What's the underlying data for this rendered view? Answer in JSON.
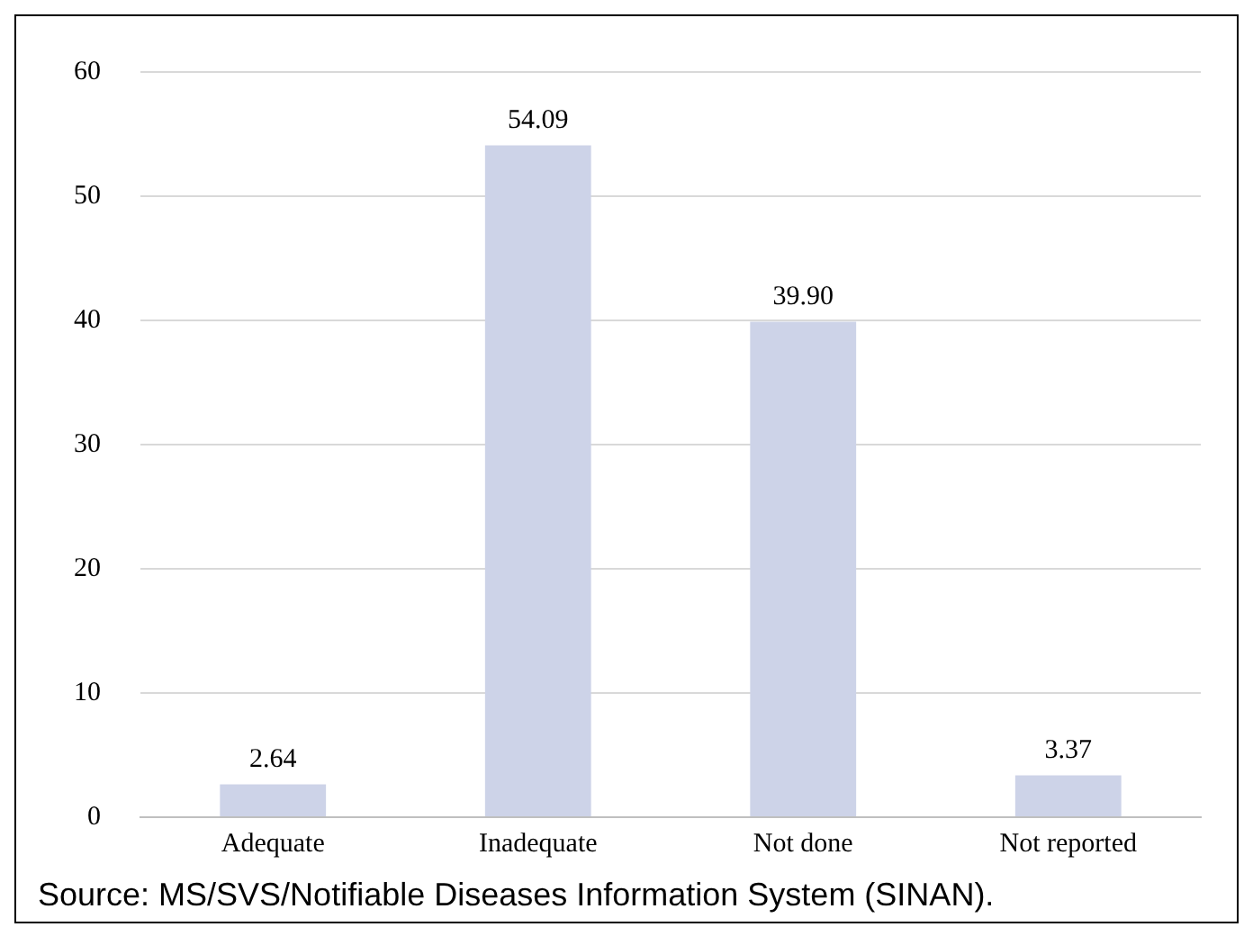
{
  "chart_data": {
    "type": "bar",
    "categories": [
      "Adequate",
      "Inadequate",
      "Not done",
      "Not reported"
    ],
    "values": [
      2.64,
      54.09,
      39.9,
      3.37
    ],
    "value_labels": [
      "2.64",
      "54.09",
      "39.90",
      "3.37"
    ],
    "color": "#cdd3e8",
    "ylim": [
      0,
      60
    ],
    "yticks": [
      0,
      10,
      20,
      30,
      40,
      50,
      60
    ],
    "grid": "y",
    "legend": false,
    "annotations": [
      "Source: MS/SVS/Notifiable Diseases Information System (SINAN)."
    ]
  }
}
